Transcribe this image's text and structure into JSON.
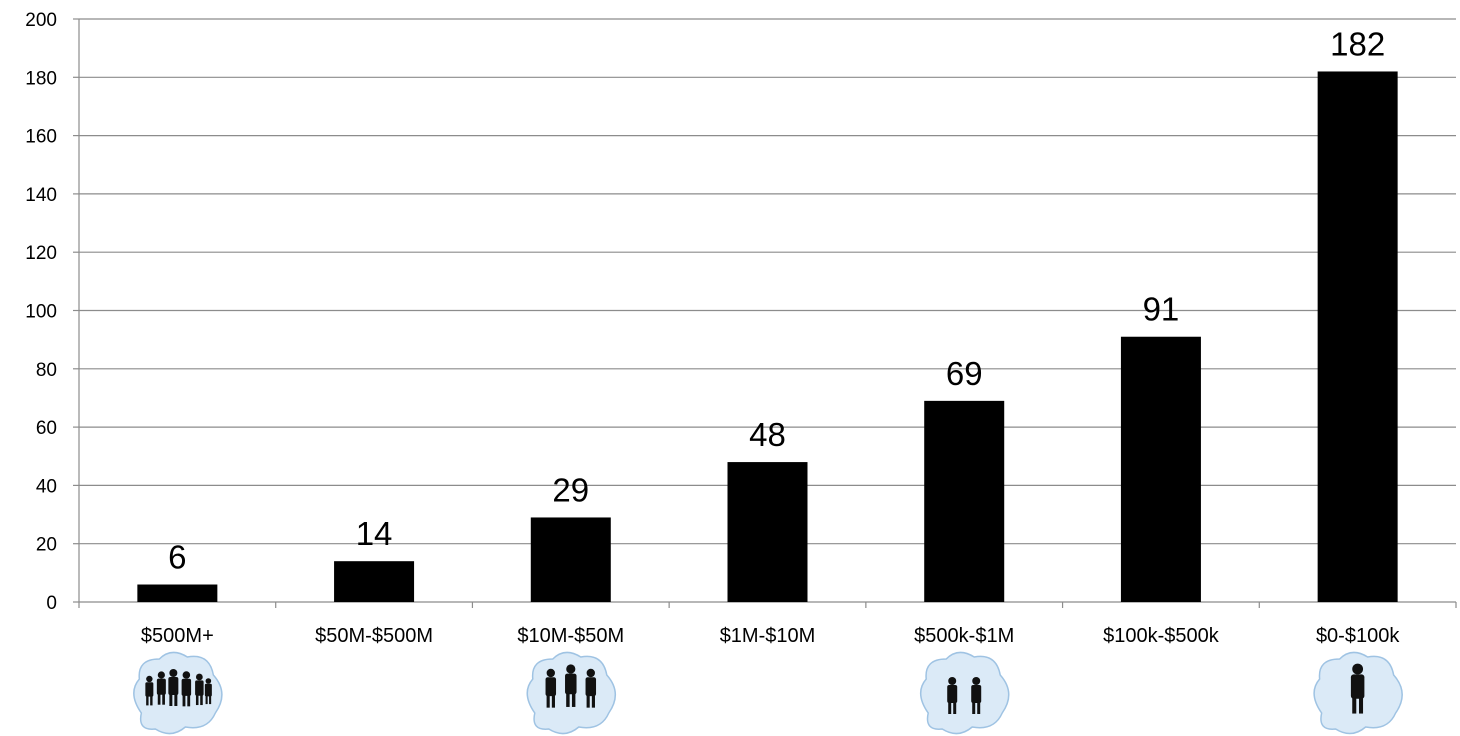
{
  "chart_data": {
    "type": "bar",
    "categories": [
      "$500M+",
      "$50M-$500M",
      "$10M-$50M",
      "$1M-$10M",
      "$500k-$1M",
      "$100k-$500k",
      "$0-$100k"
    ],
    "values": [
      6,
      14,
      29,
      48,
      69,
      91,
      182
    ],
    "data_labels": [
      "6",
      "14",
      "29",
      "48",
      "69",
      "91",
      "182"
    ],
    "title": "",
    "xlabel": "",
    "ylabel": "",
    "ylim": [
      0,
      200
    ],
    "y_ticks": [
      0,
      20,
      40,
      60,
      80,
      100,
      120,
      140,
      160,
      180,
      200
    ],
    "grid": true,
    "legend": "none",
    "bar_color": "#000000",
    "grid_color": "#8c8c8c"
  },
  "icons": [
    {
      "name": "large-group-people-icon",
      "category": "$500M+"
    },
    {
      "name": "business-team-icon",
      "category": "$10M-$50M"
    },
    {
      "name": "handshake-icon",
      "category": "$500k-$1M"
    },
    {
      "name": "single-businessman-icon",
      "category": "$0-$100k"
    }
  ]
}
